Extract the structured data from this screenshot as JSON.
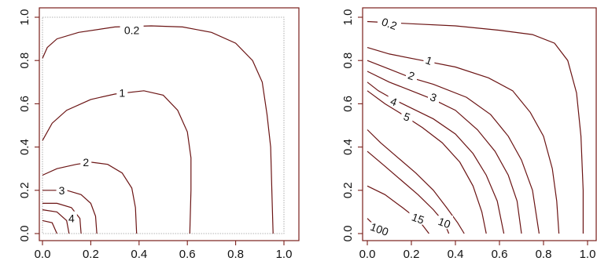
{
  "chart_data": [
    {
      "type": "contour",
      "xlim": [
        0,
        1
      ],
      "ylim": [
        0,
        1
      ],
      "x_ticks": [
        "0.0",
        "0.2",
        "0.4",
        "0.6",
        "0.8",
        "1.0"
      ],
      "y_ticks": [
        "0.0",
        "0.2",
        "0.4",
        "0.6",
        "0.8",
        "1.0"
      ],
      "grid": false,
      "contours": [
        {
          "level": "0.2",
          "points": [
            [
              0.0,
              0.81
            ],
            [
              0.02,
              0.86
            ],
            [
              0.06,
              0.9
            ],
            [
              0.15,
              0.93
            ],
            [
              0.3,
              0.955
            ],
            [
              0.45,
              0.96
            ],
            [
              0.58,
              0.955
            ],
            [
              0.7,
              0.93
            ],
            [
              0.8,
              0.88
            ],
            [
              0.87,
              0.8
            ],
            [
              0.91,
              0.7
            ],
            [
              0.93,
              0.55
            ],
            [
              0.945,
              0.4
            ],
            [
              0.95,
              0.2
            ],
            [
              0.955,
              0.0
            ]
          ],
          "label_at": [
            0.37,
            0.94
          ]
        },
        {
          "level": "1",
          "points": [
            [
              0.0,
              0.43
            ],
            [
              0.04,
              0.51
            ],
            [
              0.1,
              0.57
            ],
            [
              0.2,
              0.62
            ],
            [
              0.3,
              0.645
            ],
            [
              0.42,
              0.66
            ],
            [
              0.5,
              0.64
            ],
            [
              0.56,
              0.57
            ],
            [
              0.6,
              0.47
            ],
            [
              0.615,
              0.35
            ],
            [
              0.615,
              0.2
            ],
            [
              0.61,
              0.0
            ]
          ],
          "label_at": [
            0.33,
            0.65
          ]
        },
        {
          "level": "2",
          "points": [
            [
              0.0,
              0.27
            ],
            [
              0.06,
              0.3
            ],
            [
              0.14,
              0.32
            ],
            [
              0.2,
              0.33
            ],
            [
              0.27,
              0.32
            ],
            [
              0.33,
              0.28
            ],
            [
              0.37,
              0.21
            ],
            [
              0.385,
              0.12
            ],
            [
              0.39,
              0.0
            ]
          ],
          "label_at": [
            0.18,
            0.33
          ]
        },
        {
          "level": "3",
          "points": [
            [
              0.0,
              0.2
            ],
            [
              0.05,
              0.2
            ],
            [
              0.1,
              0.2
            ],
            [
              0.16,
              0.18
            ],
            [
              0.2,
              0.14
            ],
            [
              0.22,
              0.08
            ],
            [
              0.225,
              0.0
            ]
          ],
          "label_at": [
            0.08,
            0.2
          ]
        },
        {
          "level": "4",
          "points": [
            [
              0.0,
              0.14
            ],
            [
              0.06,
              0.14
            ],
            [
              0.12,
              0.12
            ],
            [
              0.155,
              0.07
            ],
            [
              0.16,
              0.0
            ]
          ],
          "label_at": [
            0.12,
            0.07
          ]
        },
        {
          "level": "",
          "points": [
            [
              0.0,
              0.11
            ],
            [
              0.06,
              0.1
            ],
            [
              0.1,
              0.06
            ],
            [
              0.11,
              0.0
            ]
          ]
        },
        {
          "level": "",
          "points": [
            [
              0.0,
              0.06
            ],
            [
              0.04,
              0.05
            ],
            [
              0.06,
              0.0
            ]
          ]
        }
      ]
    },
    {
      "type": "contour",
      "xlim": [
        0,
        1
      ],
      "ylim": [
        0,
        1
      ],
      "x_ticks": [
        "0.0",
        "0.2",
        "0.4",
        "0.6",
        "0.8",
        "1.0"
      ],
      "y_ticks": [
        "0.0",
        "0.2",
        "0.4",
        "0.6",
        "0.8",
        "1.0"
      ],
      "grid": false,
      "contours": [
        {
          "level": "0.2",
          "points": [
            [
              0.0,
              0.98
            ],
            [
              0.2,
              0.97
            ],
            [
              0.4,
              0.96
            ],
            [
              0.6,
              0.94
            ],
            [
              0.75,
              0.92
            ],
            [
              0.85,
              0.88
            ],
            [
              0.91,
              0.8
            ],
            [
              0.95,
              0.65
            ],
            [
              0.97,
              0.45
            ],
            [
              0.98,
              0.2
            ],
            [
              0.98,
              0.0
            ]
          ],
          "label_at": [
            0.1,
            0.97
          ]
        },
        {
          "level": "1",
          "points": [
            [
              0.0,
              0.86
            ],
            [
              0.1,
              0.83
            ],
            [
              0.25,
              0.8
            ],
            [
              0.4,
              0.77
            ],
            [
              0.55,
              0.72
            ],
            [
              0.66,
              0.66
            ],
            [
              0.74,
              0.56
            ],
            [
              0.8,
              0.45
            ],
            [
              0.84,
              0.3
            ],
            [
              0.86,
              0.15
            ],
            [
              0.87,
              0.0
            ]
          ],
          "label_at": [
            0.28,
            0.8
          ]
        },
        {
          "level": "2",
          "points": [
            [
              0.0,
              0.8
            ],
            [
              0.1,
              0.76
            ],
            [
              0.2,
              0.72
            ],
            [
              0.3,
              0.69
            ],
            [
              0.45,
              0.63
            ],
            [
              0.56,
              0.55
            ],
            [
              0.64,
              0.45
            ],
            [
              0.7,
              0.34
            ],
            [
              0.75,
              0.2
            ],
            [
              0.78,
              0.0
            ]
          ],
          "label_at": [
            0.2,
            0.73
          ]
        },
        {
          "level": "3",
          "points": [
            [
              0.0,
              0.75
            ],
            [
              0.1,
              0.7
            ],
            [
              0.2,
              0.66
            ],
            [
              0.3,
              0.62
            ],
            [
              0.4,
              0.57
            ],
            [
              0.5,
              0.48
            ],
            [
              0.58,
              0.38
            ],
            [
              0.64,
              0.27
            ],
            [
              0.68,
              0.15
            ],
            [
              0.7,
              0.0
            ]
          ],
          "label_at": [
            0.3,
            0.63
          ]
        },
        {
          "level": "4",
          "points": [
            [
              0.0,
              0.7
            ],
            [
              0.05,
              0.66
            ],
            [
              0.12,
              0.62
            ],
            [
              0.2,
              0.58
            ],
            [
              0.3,
              0.53
            ],
            [
              0.4,
              0.46
            ],
            [
              0.48,
              0.37
            ],
            [
              0.54,
              0.27
            ],
            [
              0.59,
              0.15
            ],
            [
              0.62,
              0.0
            ]
          ],
          "label_at": [
            0.12,
            0.61
          ]
        },
        {
          "level": "5",
          "points": [
            [
              0.0,
              0.66
            ],
            [
              0.08,
              0.6
            ],
            [
              0.16,
              0.55
            ],
            [
              0.25,
              0.49
            ],
            [
              0.34,
              0.42
            ],
            [
              0.42,
              0.33
            ],
            [
              0.48,
              0.22
            ],
            [
              0.52,
              0.1
            ],
            [
              0.54,
              0.0
            ]
          ],
          "label_at": [
            0.18,
            0.54
          ]
        },
        {
          "level": "",
          "points": [
            [
              0.0,
              0.48
            ],
            [
              0.06,
              0.42
            ],
            [
              0.14,
              0.35
            ],
            [
              0.22,
              0.28
            ],
            [
              0.3,
              0.2
            ],
            [
              0.36,
              0.12
            ],
            [
              0.41,
              0.05
            ],
            [
              0.44,
              0.0
            ]
          ]
        },
        {
          "level": "10",
          "points": [
            [
              0.0,
              0.38
            ],
            [
              0.07,
              0.32
            ],
            [
              0.15,
              0.25
            ],
            [
              0.23,
              0.18
            ],
            [
              0.3,
              0.11
            ],
            [
              0.35,
              0.05
            ],
            [
              0.37,
              0.0
            ]
          ],
          "label_at": [
            0.35,
            0.05
          ]
        },
        {
          "level": "15",
          "points": [
            [
              0.0,
              0.22
            ],
            [
              0.08,
              0.18
            ],
            [
              0.16,
              0.12
            ],
            [
              0.21,
              0.08
            ],
            [
              0.25,
              0.04
            ],
            [
              0.28,
              0.0
            ]
          ],
          "label_at": [
            0.23,
            0.07
          ]
        },
        {
          "level": "100",
          "points": [
            [
              0.0,
              0.07
            ],
            [
              0.02,
              0.05
            ],
            [
              0.04,
              0.03
            ]
          ],
          "label_at": [
            0.055,
            0.02
          ]
        }
      ]
    }
  ]
}
